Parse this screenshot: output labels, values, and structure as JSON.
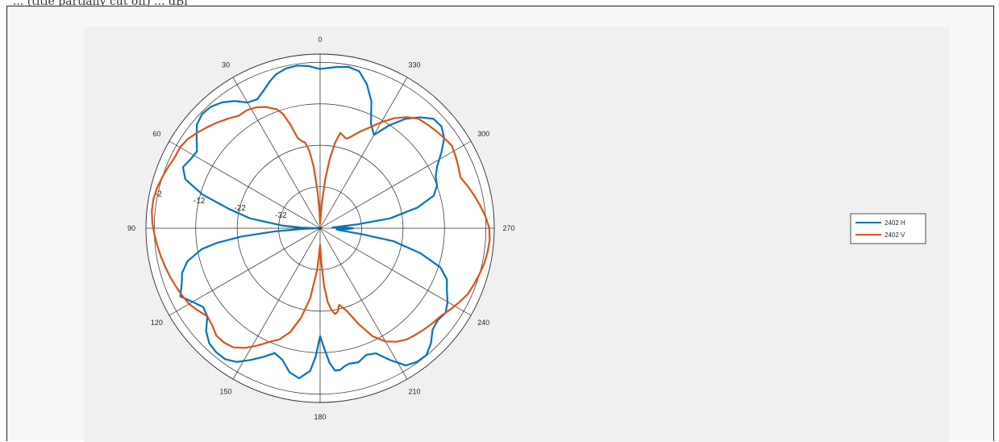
{
  "page": {
    "title": "... (title partially cut off) ... dBi"
  },
  "colors": {
    "background": "#ffffff",
    "panel": "#f0f0f0",
    "axes_background": "#ffffff",
    "grid": "#262626",
    "series_h": "#0072bd",
    "series_v": "#d95319"
  },
  "chart_data": {
    "type": "polar-line",
    "theta_direction": "counterclockwise",
    "theta_zero": "top",
    "theta_ticks": [
      0,
      30,
      60,
      90,
      120,
      150,
      180,
      210,
      240,
      270,
      300,
      330
    ],
    "theta_tick_labels": [
      "0",
      "30",
      "60",
      "90",
      "120",
      "150",
      "180",
      "210",
      "240",
      "270",
      "300",
      "330"
    ],
    "r_lim": [
      -42,
      0
    ],
    "r_ticks": [
      -32,
      -22,
      -12,
      -2
    ],
    "r_tick_labels": [
      "-32",
      "-22",
      "-12",
      "-2"
    ],
    "r_tick_angle": 80,
    "legend": {
      "position": "right",
      "entries": [
        "2402 H",
        "2402 V"
      ]
    },
    "series": [
      {
        "name": "2402 H",
        "color": "#0072bd",
        "theta": [
          0,
          4,
          8,
          12,
          16,
          19,
          22,
          26,
          30,
          34,
          38,
          42,
          46,
          50,
          54,
          58,
          62,
          66,
          70,
          74,
          78,
          82,
          86,
          88,
          90,
          92,
          94,
          96,
          98,
          100,
          104,
          108,
          112,
          116,
          120,
          124,
          128,
          132,
          136,
          140,
          144,
          148,
          152,
          156,
          160,
          164,
          168,
          172,
          176,
          178,
          180,
          182,
          184,
          186,
          188,
          190,
          192,
          196,
          200,
          204,
          208,
          212,
          216,
          220,
          224,
          228,
          232,
          236,
          240,
          244,
          248,
          252,
          256,
          260,
          262,
          264,
          266,
          268,
          270,
          272,
          274,
          276,
          278,
          282,
          286,
          290,
          294,
          298,
          302,
          306,
          310,
          314,
          318,
          322,
          326,
          330,
          334,
          338,
          342,
          346,
          350,
          354,
          358,
          360
        ],
        "r": [
          -3.6,
          -2.8,
          -2.4,
          -2.6,
          -3.4,
          -4.6,
          -6.0,
          -7.4,
          -7.0,
          -5.0,
          -3.5,
          -2.6,
          -2.4,
          -3.2,
          -5.2,
          -7.0,
          -6.6,
          -5.8,
          -7.4,
          -12.5,
          -19.5,
          -25.0,
          -33.0,
          -37.5,
          -41.5,
          -38.0,
          -31.0,
          -23.0,
          -17.0,
          -13.0,
          -9.0,
          -7.0,
          -6.0,
          -4.5,
          -6.5,
          -8.0,
          -7.5,
          -5.0,
          -3.5,
          -3.0,
          -3.0,
          -4.0,
          -6.0,
          -8.0,
          -10.0,
          -9.0,
          -6.5,
          -5.5,
          -7.5,
          -11.0,
          -16.0,
          -13.0,
          -9.5,
          -7.5,
          -7.5,
          -8.2,
          -8.6,
          -8.4,
          -9.5,
          -9.0,
          -6.0,
          -3.0,
          -2.2,
          -2.1,
          -3.5,
          -5.5,
          -6.0,
          -5.5,
          -6.5,
          -8.0,
          -9.0,
          -11.5,
          -17.0,
          -24.0,
          -32.0,
          -37.0,
          -38.0,
          -35.5,
          -34.0,
          -36.0,
          -39.0,
          -33.0,
          -25.0,
          -18.0,
          -13.5,
          -12.0,
          -11.5,
          -10.0,
          -7.5,
          -5.0,
          -3.8,
          -4.0,
          -6.0,
          -8.5,
          -12.0,
          -16.0,
          -14.0,
          -9.0,
          -5.5,
          -3.0,
          -2.5,
          -2.9,
          -3.4,
          -3.6
        ]
      },
      {
        "name": "2402 V",
        "color": "#d95319",
        "theta": [
          0,
          2,
          4,
          6,
          8,
          10,
          12,
          14,
          16,
          18,
          20,
          24,
          28,
          32,
          36,
          40,
          44,
          48,
          52,
          56,
          60,
          64,
          68,
          72,
          76,
          80,
          84,
          88,
          92,
          96,
          100,
          104,
          108,
          112,
          116,
          120,
          124,
          128,
          132,
          136,
          140,
          144,
          148,
          152,
          156,
          160,
          164,
          168,
          172,
          176,
          178,
          180,
          182,
          184,
          186,
          188,
          190,
          192,
          194,
          198,
          202,
          206,
          210,
          214,
          218,
          222,
          226,
          230,
          234,
          238,
          242,
          246,
          250,
          254,
          258,
          262,
          266,
          270,
          274,
          278,
          282,
          286,
          290,
          294,
          298,
          302,
          306,
          310,
          314,
          318,
          322,
          326,
          330,
          334,
          338,
          342,
          344,
          346,
          348,
          350,
          352,
          354,
          356,
          358,
          360
        ],
        "r": [
          -41.0,
          -38.0,
          -33.0,
          -27.0,
          -23.0,
          -21.0,
          -20.5,
          -19.5,
          -16.0,
          -13.0,
          -11.5,
          -10.0,
          -9.0,
          -8.5,
          -8.5,
          -7.5,
          -6.5,
          -5.5,
          -4.5,
          -3.5,
          -3.0,
          -3.0,
          -2.5,
          -2.0,
          -1.5,
          -1.2,
          -1.2,
          -1.5,
          -2.0,
          -2.5,
          -3.0,
          -3.5,
          -4.0,
          -4.5,
          -5.0,
          -5.5,
          -6.5,
          -7.5,
          -7.0,
          -6.0,
          -6.0,
          -6.5,
          -8.0,
          -10.0,
          -12.0,
          -13.5,
          -16.0,
          -20.0,
          -25.0,
          -32.0,
          -36.0,
          -38.0,
          -34.0,
          -28.0,
          -24.0,
          -22.0,
          -21.0,
          -21.5,
          -23.0,
          -21.0,
          -17.0,
          -13.0,
          -10.5,
          -9.0,
          -8.0,
          -7.5,
          -7.0,
          -6.5,
          -6.0,
          -5.0,
          -4.0,
          -3.0,
          -2.5,
          -2.0,
          -1.5,
          -1.2,
          -1.0,
          -1.2,
          -2.0,
          -3.0,
          -4.0,
          -5.0,
          -6.0,
          -5.5,
          -5.0,
          -4.5,
          -5.0,
          -5.5,
          -6.0,
          -6.5,
          -8.0,
          -10.0,
          -12.5,
          -15.0,
          -17.0,
          -19.0,
          -19.5,
          -19.0,
          -18.5,
          -21.0,
          -25.0,
          -30.0,
          -36.0,
          -40.0,
          -41.0
        ]
      }
    ]
  }
}
